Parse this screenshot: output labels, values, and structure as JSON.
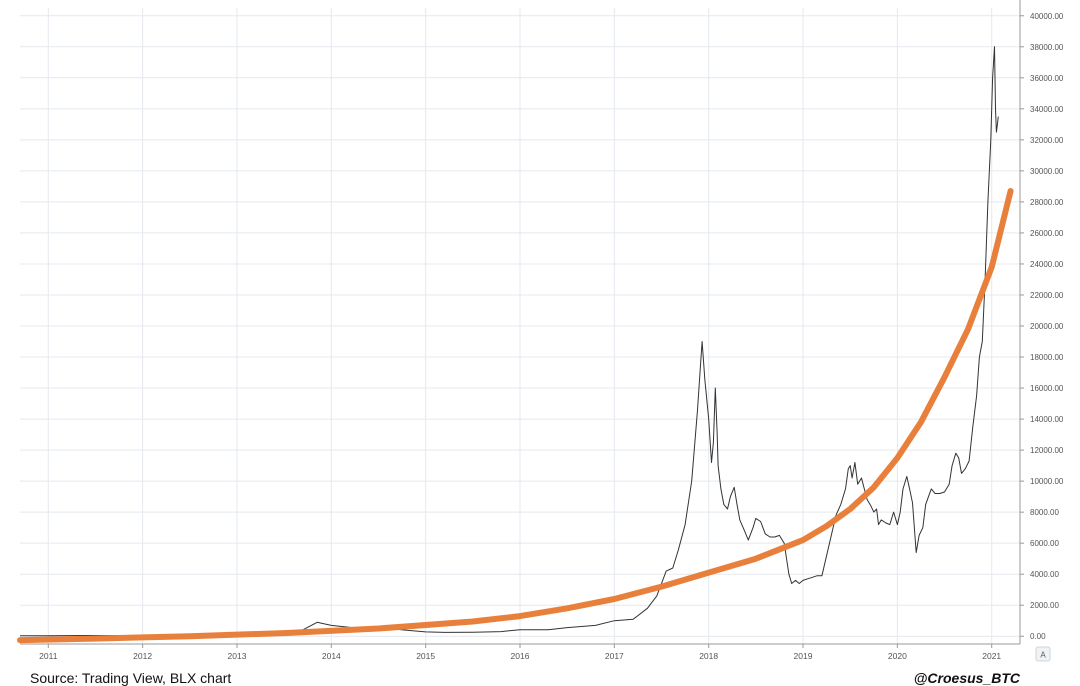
{
  "footer": {
    "source": "Source: Trading View, BLX chart",
    "handle": "@Croesus_BTC"
  },
  "axis_corner_label": "A",
  "chart_data": {
    "type": "line",
    "xlim": [
      2010.7,
      2021.3
    ],
    "ylim": [
      -500,
      40500
    ],
    "x_ticks": [
      2011,
      2012,
      2013,
      2014,
      2015,
      2016,
      2017,
      2018,
      2019,
      2020,
      2021
    ],
    "x_tick_labels": [
      "2011",
      "2012",
      "2013",
      "2014",
      "2015",
      "2016",
      "2017",
      "2018",
      "2019",
      "2020",
      "2021"
    ],
    "y_ticks": [
      0,
      2000,
      4000,
      6000,
      8000,
      10000,
      12000,
      14000,
      16000,
      18000,
      20000,
      22000,
      24000,
      26000,
      28000,
      30000,
      32000,
      34000,
      36000,
      38000,
      40000
    ],
    "y_tick_labels": [
      "0.00",
      "2000.00",
      "4000.00",
      "6000.00",
      "8000.00",
      "10000.00",
      "12000.00",
      "14000.00",
      "16000.00",
      "18000.00",
      "20000.00",
      "22000.00",
      "24000.00",
      "26000.00",
      "28000.00",
      "30000.00",
      "32000.00",
      "34000.00",
      "36000.00",
      "38000.00",
      "40000.00"
    ],
    "grid": true,
    "colors": {
      "price": "#333333",
      "trend": "#e8803c",
      "grid": "#e4e9ef",
      "axis": "#999999"
    },
    "series": [
      {
        "role": "price",
        "x": [
          2010.7,
          2011.0,
          2011.4,
          2011.8,
          2012.2,
          2012.6,
          2013.0,
          2013.3,
          2013.6,
          2013.85,
          2013.92,
          2014.0,
          2014.15,
          2014.3,
          2014.45,
          2014.6,
          2014.8,
          2015.0,
          2015.2,
          2015.5,
          2015.8,
          2016.0,
          2016.3,
          2016.5,
          2016.8,
          2017.0,
          2017.2,
          2017.35,
          2017.45,
          2017.55,
          2017.62,
          2017.68,
          2017.75,
          2017.82,
          2017.88,
          2017.93,
          2017.96,
          2018.0,
          2018.03,
          2018.05,
          2018.07,
          2018.09,
          2018.1,
          2018.13,
          2018.16,
          2018.2,
          2018.23,
          2018.27,
          2018.3,
          2018.33,
          2018.38,
          2018.42,
          2018.47,
          2018.5,
          2018.55,
          2018.6,
          2018.65,
          2018.7,
          2018.75,
          2018.8,
          2018.85,
          2018.88,
          2018.92,
          2018.96,
          2019.0,
          2019.05,
          2019.1,
          2019.15,
          2019.2,
          2019.25,
          2019.3,
          2019.35,
          2019.4,
          2019.45,
          2019.48,
          2019.5,
          2019.52,
          2019.55,
          2019.58,
          2019.62,
          2019.65,
          2019.68,
          2019.72,
          2019.75,
          2019.78,
          2019.8,
          2019.83,
          2019.88,
          2019.92,
          2019.96,
          2020.0,
          2020.03,
          2020.06,
          2020.1,
          2020.13,
          2020.16,
          2020.2,
          2020.23,
          2020.27,
          2020.3,
          2020.33,
          2020.36,
          2020.4,
          2020.45,
          2020.5,
          2020.55,
          2020.58,
          2020.62,
          2020.65,
          2020.68,
          2020.72,
          2020.76,
          2020.8,
          2020.84,
          2020.87,
          2020.9,
          2020.93,
          2020.96,
          2020.99,
          2021.01,
          2021.03,
          2021.04,
          2021.05,
          2021.06,
          2021.07
        ],
        "y": [
          30,
          30,
          50,
          40,
          30,
          60,
          40,
          80,
          100,
          900,
          800,
          700,
          600,
          500,
          600,
          500,
          380,
          280,
          250,
          260,
          300,
          420,
          420,
          560,
          700,
          1000,
          1100,
          1800,
          2600,
          4200,
          4400,
          5600,
          7200,
          10000,
          14500,
          19000,
          16500,
          14000,
          11200,
          12500,
          16000,
          13000,
          11000,
          9500,
          8500,
          8200,
          9000,
          9600,
          8500,
          7500,
          6800,
          6200,
          7000,
          7600,
          7400,
          6600,
          6400,
          6400,
          6500,
          6000,
          4000,
          3400,
          3600,
          3400,
          3600,
          3700,
          3800,
          3900,
          3900,
          5200,
          6500,
          7800,
          8500,
          9500,
          10800,
          11000,
          10200,
          11200,
          9800,
          10200,
          9500,
          8800,
          8400,
          8000,
          8200,
          7200,
          7500,
          7300,
          7200,
          8000,
          7200,
          8000,
          9500,
          10300,
          9500,
          8600,
          5400,
          6500,
          7000,
          8500,
          9000,
          9500,
          9200,
          9200,
          9300,
          9800,
          11000,
          11800,
          11500,
          10500,
          10800,
          11300,
          13500,
          15500,
          18000,
          19000,
          23000,
          28000,
          32000,
          36000,
          38000,
          34000,
          32500,
          33000,
          33500
        ]
      },
      {
        "role": "trend",
        "x": [
          2010.7,
          2011.5,
          2012.5,
          2013.5,
          2014.5,
          2015.5,
          2016.0,
          2016.5,
          2017.0,
          2017.5,
          2018.0,
          2018.5,
          2019.0,
          2019.25,
          2019.5,
          2019.75,
          2020.0,
          2020.25,
          2020.5,
          2020.75,
          2021.0,
          2021.2
        ],
        "y": [
          -250,
          -150,
          0,
          200,
          500,
          950,
          1300,
          1800,
          2400,
          3200,
          4100,
          5000,
          6200,
          7100,
          8200,
          9600,
          11500,
          13800,
          16700,
          19800,
          23800,
          28700
        ]
      }
    ]
  }
}
